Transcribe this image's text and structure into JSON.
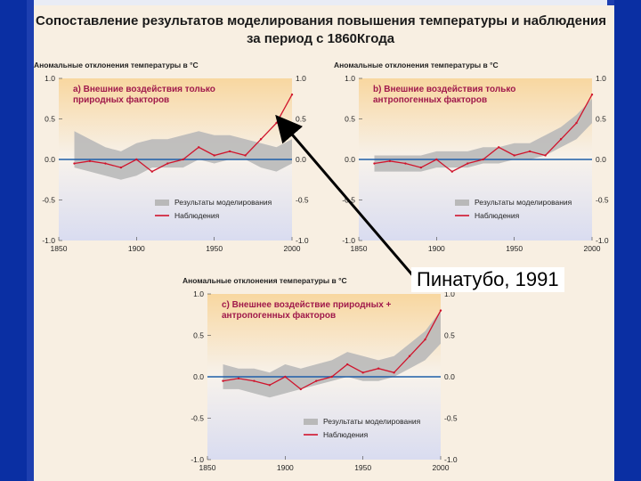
{
  "title_line1": "Сопоставление результатов моделирования повышения температуры и наблюдения",
  "title_line2": "за период с 1860Кгода",
  "annotation": "Пинатубо, 1991",
  "colors": {
    "model_band": "#b9b9b9",
    "observed": "#d0142c",
    "zero_line": "#1f5fa8",
    "header_gradient": "#f8d7a0",
    "footer_gradient": "#d9dcf0"
  },
  "chart_data": [
    {
      "type": "line",
      "ylabel": "Аномальные отклонения температуры в °С",
      "subtitle": [
        "a) Внешние воздействия только",
        "природных факторов"
      ],
      "legend": [
        "Результаты моделирования",
        "Наблюдения"
      ],
      "xticks": [
        "1850",
        "1900",
        "1950",
        "2000"
      ],
      "yticks_left": [
        "1.0",
        "0.5",
        "0.0",
        "-0.5",
        "-1.0"
      ],
      "yticks_right": [
        "1.0",
        "0.5",
        "0.0",
        "-0.5",
        "-1.0"
      ],
      "xlim": [
        1850,
        2000
      ],
      "ylim": [
        -1.0,
        1.0
      ],
      "series": [
        {
          "name": "Наблюдения",
          "x": [
            1860,
            1870,
            1880,
            1890,
            1900,
            1910,
            1920,
            1930,
            1940,
            1950,
            1960,
            1970,
            1980,
            1990,
            2000
          ],
          "y": [
            -0.05,
            -0.02,
            -0.05,
            -0.1,
            0.0,
            -0.15,
            -0.05,
            0.0,
            0.15,
            0.05,
            0.1,
            0.05,
            0.25,
            0.45,
            0.8
          ]
        },
        {
          "name": "Результаты моделирования",
          "x": [
            1860,
            1870,
            1880,
            1890,
            1900,
            1910,
            1920,
            1930,
            1940,
            1950,
            1960,
            1970,
            1980,
            1990,
            2000
          ],
          "lower": [
            -0.1,
            -0.15,
            -0.2,
            -0.25,
            -0.2,
            -0.1,
            -0.1,
            -0.1,
            0.0,
            -0.05,
            0.0,
            0.0,
            -0.1,
            -0.15,
            -0.05
          ],
          "upper": [
            0.35,
            0.25,
            0.15,
            0.1,
            0.2,
            0.25,
            0.25,
            0.3,
            0.35,
            0.3,
            0.3,
            0.25,
            0.2,
            0.15,
            0.25
          ]
        }
      ]
    },
    {
      "type": "line",
      "ylabel": "Аномальные отклонения температуры в °С",
      "subtitle": [
        "b) Внешние воздействия только",
        "антропогенных факторов"
      ],
      "legend": [
        "Результаты моделирования",
        "Наблюдения"
      ],
      "xticks": [
        "1850",
        "1900",
        "1950",
        "2000"
      ],
      "yticks_left": [
        "1.0",
        "0.5",
        "0.0",
        "-0.5",
        "-1.0"
      ],
      "yticks_right": [
        "1.0",
        "0.5",
        "0.0",
        "-0.5",
        "-1.0"
      ],
      "xlim": [
        1850,
        2000
      ],
      "ylim": [
        -1.0,
        1.0
      ],
      "series": [
        {
          "name": "Наблюдения",
          "x": [
            1860,
            1870,
            1880,
            1890,
            1900,
            1910,
            1920,
            1930,
            1940,
            1950,
            1960,
            1970,
            1980,
            1990,
            2000
          ],
          "y": [
            -0.05,
            -0.02,
            -0.05,
            -0.1,
            0.0,
            -0.15,
            -0.05,
            0.0,
            0.15,
            0.05,
            0.1,
            0.05,
            0.25,
            0.45,
            0.8
          ]
        },
        {
          "name": "Результаты моделирования",
          "x": [
            1860,
            1870,
            1880,
            1890,
            1900,
            1910,
            1920,
            1930,
            1940,
            1950,
            1960,
            1970,
            1980,
            1990,
            2000
          ],
          "lower": [
            -0.15,
            -0.15,
            -0.15,
            -0.15,
            -0.1,
            -0.1,
            -0.1,
            -0.05,
            -0.05,
            0.0,
            0.0,
            0.05,
            0.15,
            0.25,
            0.45
          ],
          "upper": [
            0.05,
            0.05,
            0.05,
            0.05,
            0.1,
            0.1,
            0.1,
            0.15,
            0.15,
            0.2,
            0.2,
            0.3,
            0.4,
            0.55,
            0.75
          ]
        }
      ]
    },
    {
      "type": "line",
      "ylabel": "Аномальные отклонения температуры в °С",
      "subtitle": [
        "c) Внешнее воздействие природных +",
        "антропогенных факторов"
      ],
      "legend": [
        "Результаты моделирования",
        "Наблюдения"
      ],
      "xticks": [
        "1850",
        "1900",
        "1950",
        "2000"
      ],
      "yticks_left": [
        "1.0",
        "0.5",
        "0.0",
        "-0.5",
        "-1.0"
      ],
      "yticks_right": [
        "1.0",
        "0.5",
        "0.0",
        "-0.5",
        "-1.0"
      ],
      "xlim": [
        1850,
        2000
      ],
      "ylim": [
        -1.0,
        1.0
      ],
      "series": [
        {
          "name": "Наблюдения",
          "x": [
            1860,
            1870,
            1880,
            1890,
            1900,
            1910,
            1920,
            1930,
            1940,
            1950,
            1960,
            1970,
            1980,
            1990,
            2000
          ],
          "y": [
            -0.05,
            -0.02,
            -0.05,
            -0.1,
            0.0,
            -0.15,
            -0.05,
            0.0,
            0.15,
            0.05,
            0.1,
            0.05,
            0.25,
            0.45,
            0.8
          ]
        },
        {
          "name": "Результаты моделирования",
          "x": [
            1860,
            1870,
            1880,
            1890,
            1900,
            1910,
            1920,
            1930,
            1940,
            1950,
            1960,
            1970,
            1980,
            1990,
            2000
          ],
          "lower": [
            -0.15,
            -0.15,
            -0.2,
            -0.25,
            -0.2,
            -0.15,
            -0.1,
            -0.05,
            0.0,
            -0.05,
            -0.05,
            0.0,
            0.1,
            0.2,
            0.4
          ],
          "upper": [
            0.15,
            0.1,
            0.1,
            0.05,
            0.15,
            0.1,
            0.15,
            0.2,
            0.3,
            0.25,
            0.2,
            0.25,
            0.4,
            0.55,
            0.8
          ]
        }
      ]
    }
  ]
}
